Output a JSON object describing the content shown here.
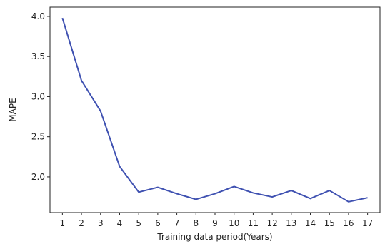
{
  "chart_data": {
    "type": "line",
    "title": "",
    "xlabel": "Training data period(Years)",
    "ylabel": "MAPE",
    "x": [
      1,
      2,
      3,
      4,
      5,
      6,
      7,
      8,
      9,
      10,
      11,
      12,
      13,
      14,
      15,
      16,
      17
    ],
    "series": [
      {
        "color": "#3f51b1",
        "values": [
          3.98,
          3.2,
          2.82,
          2.13,
          1.81,
          1.87,
          1.79,
          1.72,
          1.79,
          1.88,
          1.8,
          1.75,
          1.83,
          1.73,
          1.83,
          1.69,
          1.74
        ]
      }
    ],
    "xticks": [
      "1",
      "2",
      "3",
      "4",
      "5",
      "6",
      "7",
      "8",
      "9",
      "10",
      "11",
      "12",
      "13",
      "14",
      "15",
      "16",
      "17"
    ],
    "yticks": [
      "2.0",
      "2.5",
      "3.0",
      "3.5",
      "4.0"
    ],
    "xlim": [
      0.35,
      17.65
    ],
    "ylim": [
      1.555,
      4.115
    ],
    "grid": false,
    "legend": "none"
  }
}
